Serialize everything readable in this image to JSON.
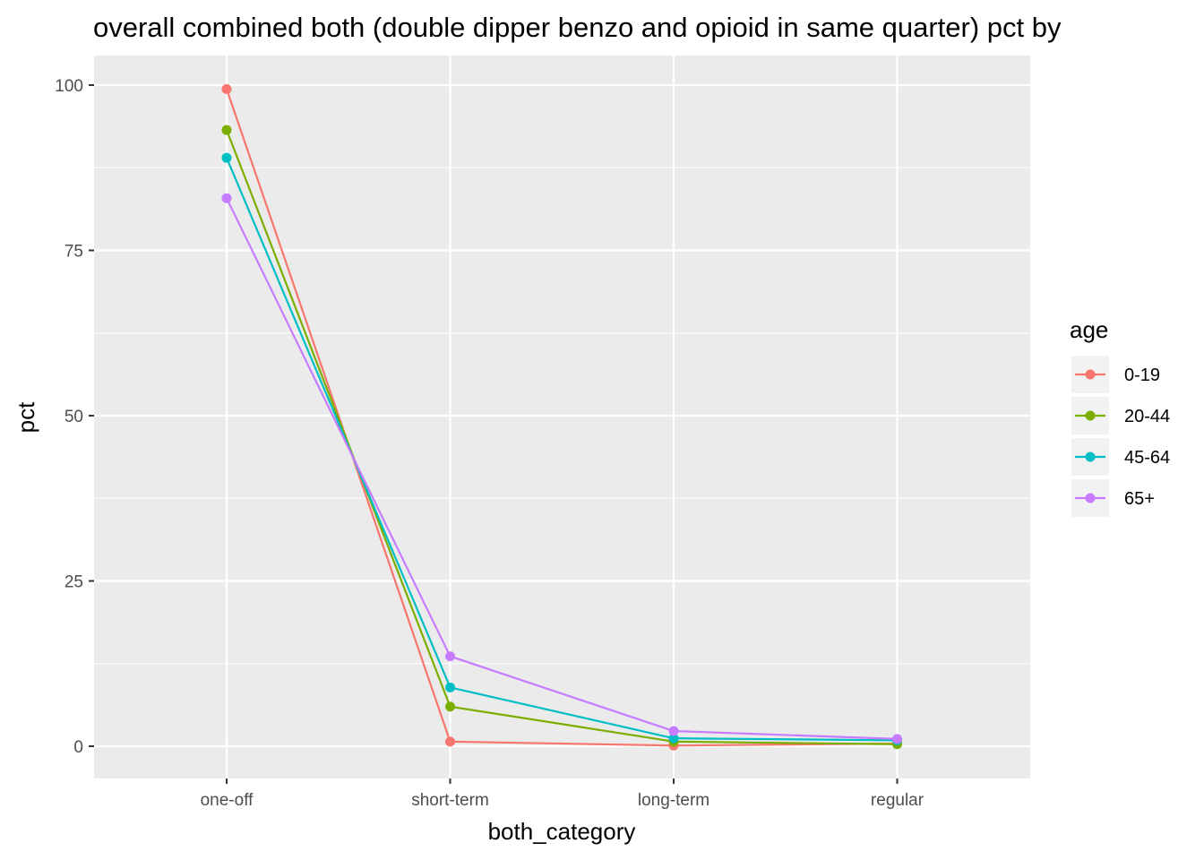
{
  "chart_data": {
    "type": "line",
    "title": "overall combined both (double dipper benzo and opioid in same quarter) pct by",
    "xlabel": "both_category",
    "ylabel": "pct",
    "categories": [
      "one-off",
      "short-term",
      "long-term",
      "regular"
    ],
    "y_ticks": [
      0,
      25,
      50,
      75,
      100
    ],
    "ylim": [
      -5,
      104.5
    ],
    "grid": true,
    "legend": {
      "title": "age",
      "position": "right"
    },
    "series": [
      {
        "name": "0-19",
        "color": "#F8766D",
        "values": [
          99.4,
          0.7,
          0.1,
          0.4
        ]
      },
      {
        "name": "20-44",
        "color": "#7CAE00",
        "values": [
          93.2,
          6.0,
          0.7,
          0.3
        ]
      },
      {
        "name": "45-64",
        "color": "#00BFC4",
        "values": [
          89.0,
          8.9,
          1.2,
          0.9
        ]
      },
      {
        "name": "65+",
        "color": "#C77CFF",
        "values": [
          82.9,
          13.6,
          2.3,
          1.1
        ]
      }
    ]
  }
}
